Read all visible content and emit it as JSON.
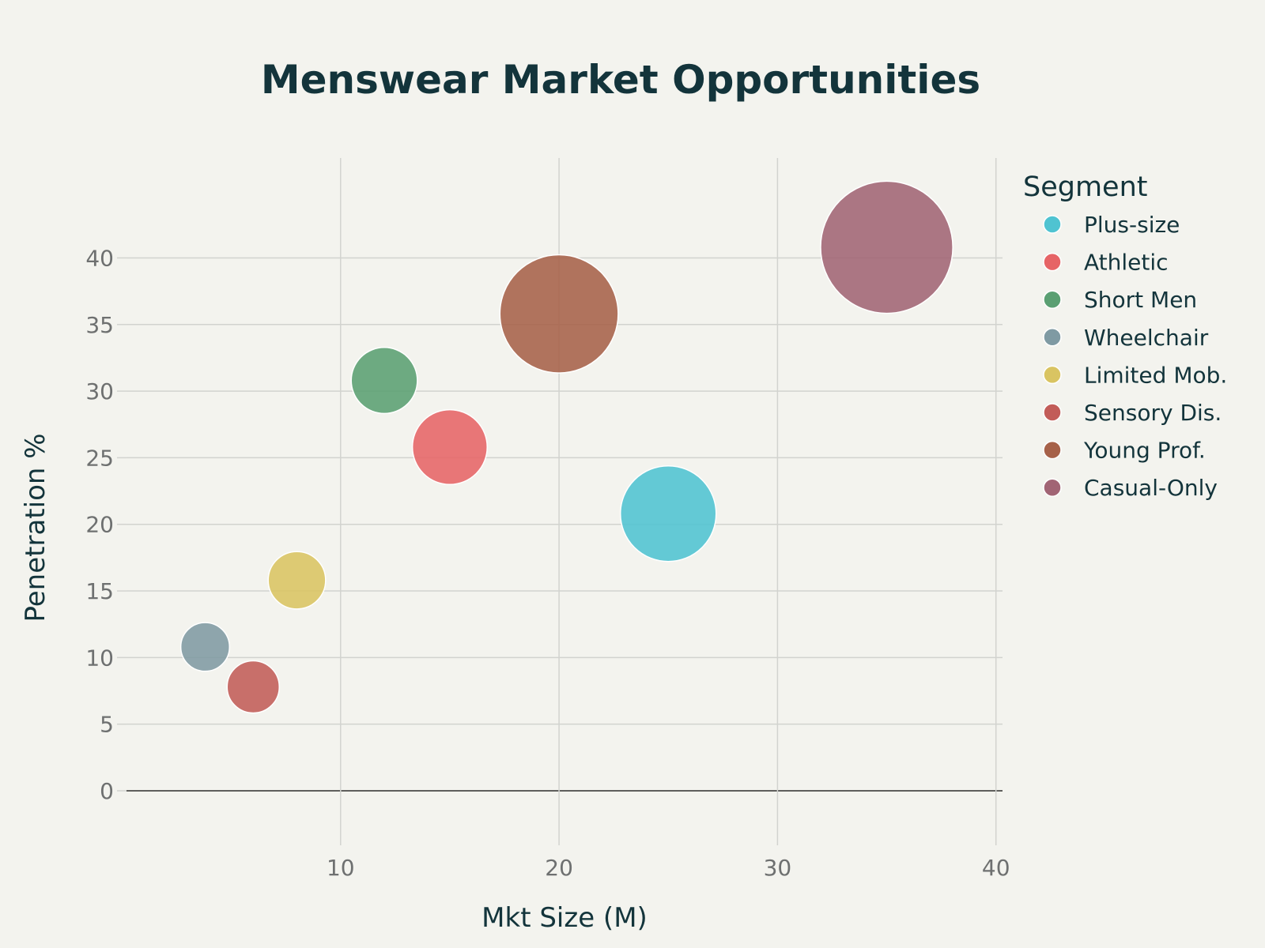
{
  "chart_data": {
    "type": "scatter",
    "title": "Menswear Market Opportunities",
    "xlabel": "Mkt Size (M)",
    "ylabel": "Penetration %",
    "xlim": [
      0.2,
      40.3
    ],
    "ylim": [
      -3.5,
      47.5
    ],
    "xticks": [
      10,
      20,
      30,
      40
    ],
    "yticks": [
      0,
      5,
      10,
      15,
      20,
      25,
      30,
      35,
      40
    ],
    "grid": true,
    "legend_title": "Segment",
    "legend_position": "right",
    "series": [
      {
        "name": "Plus-size",
        "x": 25,
        "y": 20.8,
        "size": 5.5,
        "color": "#4fc3d1"
      },
      {
        "name": "Athletic",
        "x": 15,
        "y": 25.8,
        "size": 4.3,
        "color": "#e66466"
      },
      {
        "name": "Short Men",
        "x": 12,
        "y": 30.8,
        "size": 3.8,
        "color": "#5a9f72"
      },
      {
        "name": "Wheelchair",
        "x": 3.8,
        "y": 10.8,
        "size": 2.8,
        "color": "#7f9aa3"
      },
      {
        "name": "Limited Mob.",
        "x": 8,
        "y": 15.8,
        "size": 3.3,
        "color": "#d9c462"
      },
      {
        "name": "Sensory Dis.",
        "x": 6,
        "y": 7.8,
        "size": 3.0,
        "color": "#c25c58"
      },
      {
        "name": "Young Prof.",
        "x": 20,
        "y": 35.8,
        "size": 6.8,
        "color": "#a66149"
      },
      {
        "name": "Casual-Only",
        "x": 35,
        "y": 40.8,
        "size": 7.6,
        "color": "#a16474"
      }
    ]
  }
}
